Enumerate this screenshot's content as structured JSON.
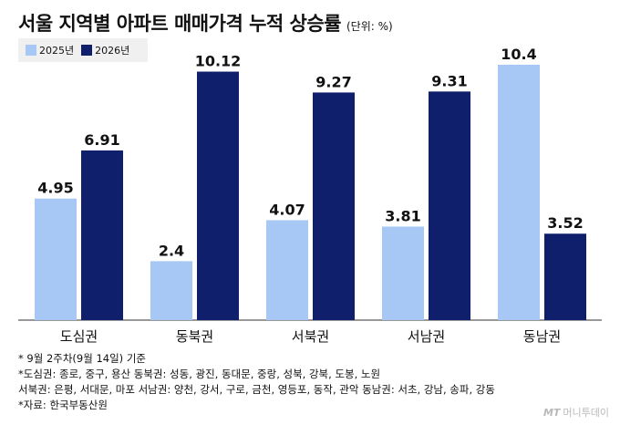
{
  "header": {
    "title": "서울 지역별 아파트 매매가격 누적 상승률",
    "unit": "(단위: %)"
  },
  "legend": [
    {
      "label": "2025년",
      "color": "#a7c8f5"
    },
    {
      "label": "2026년",
      "color": "#0f1f6b"
    }
  ],
  "chart_data": {
    "type": "bar",
    "categories": [
      "도심권",
      "동북권",
      "서북권",
      "서남권",
      "동남권"
    ],
    "series": [
      {
        "name": "2025년",
        "values": [
          4.95,
          2.4,
          4.07,
          3.81,
          10.4
        ],
        "labels": [
          "4.95",
          "2.4",
          "4.07",
          "3.81",
          "10.4"
        ],
        "color": "#a7c8f5"
      },
      {
        "name": "2026년",
        "values": [
          6.91,
          10.12,
          9.27,
          9.31,
          3.52
        ],
        "labels": [
          "6.91",
          "10.12",
          "9.27",
          "9.31",
          "3.52"
        ],
        "color": "#0f1f6b"
      }
    ],
    "title": "서울 지역별 아파트 매매가격 누적 상승률",
    "xlabel": "",
    "ylabel": "",
    "ylim": [
      0,
      10.4
    ],
    "grid": false,
    "legend_position": "top-left"
  },
  "notes": [
    "* 9월 2주차(9월 14일) 기준",
    "*도심권: 종로, 중구, 용산 동북권: 성동, 광진, 동대문, 중랑, 성북, 강북, 도봉, 노원",
    "서북권: 은평, 서대문, 마포 서남권: 양천, 강서, 구로, 금천, 영등포, 동작, 관악 동남권: 서초, 강남, 송파, 강동",
    "*자료: 한국부동산원"
  ],
  "brand": {
    "logo": "MT",
    "name": "머니투데이"
  }
}
